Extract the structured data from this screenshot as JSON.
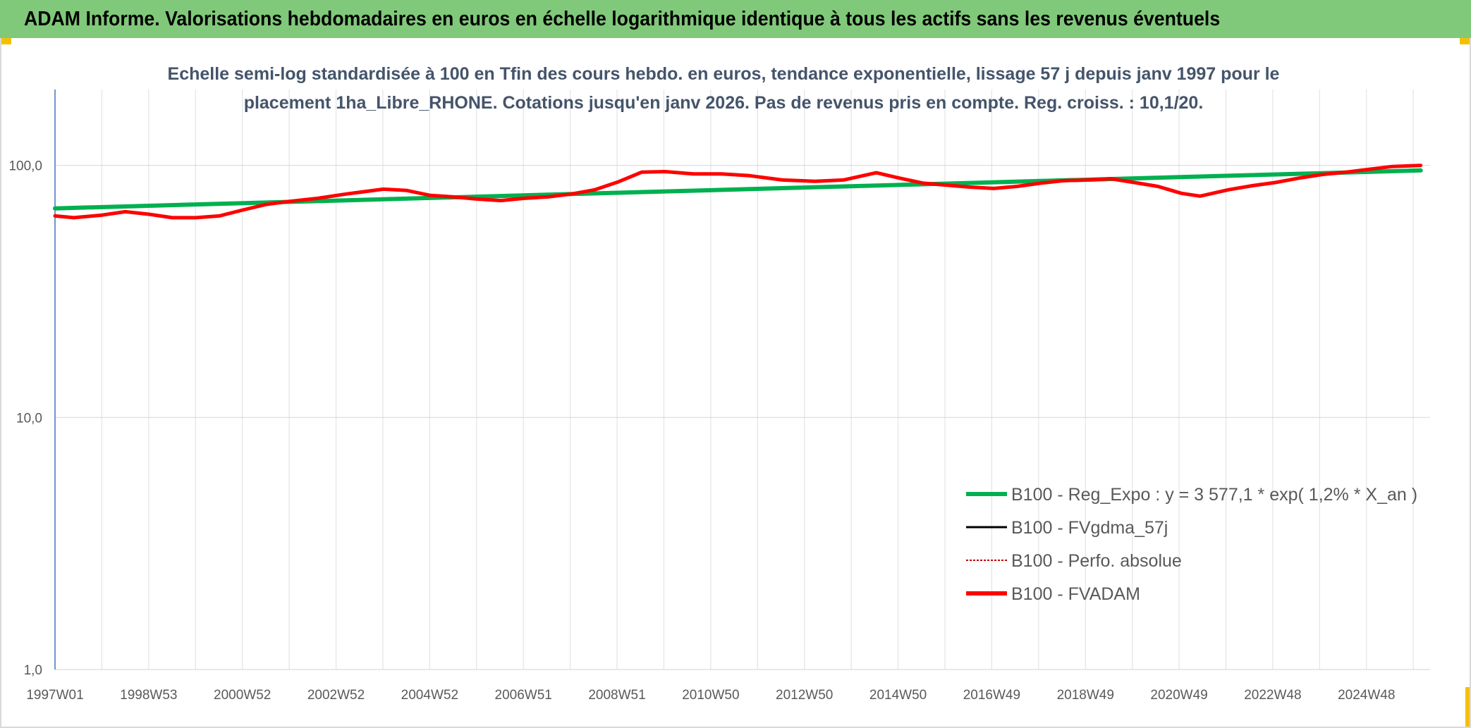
{
  "header": {
    "title": "ADAM Informe. Valorisations hebdomadaires en euros en échelle logarithmique identique à tous les actifs sans les revenus éventuels"
  },
  "chart_data": {
    "type": "line",
    "title": "",
    "subtitle_lines": [
      "Echelle semi-log standardisée à 100 en Tfin des cours hebdo. en euros, tendance exponentielle, lissage 57 j depuis janv 1997 pour le",
      "placement 1ha_Libre_RHONE. Cotations jusqu'en janv 2026. Pas de revenus pris en compte. Reg. croiss. : 10,1/20."
    ],
    "xlabel": "",
    "ylabel": "",
    "y_scale": "log",
    "ylim": [
      1,
      200
    ],
    "y_ticks": [
      1,
      10,
      100
    ],
    "y_tick_labels": [
      "1,0",
      "10,0",
      "100,0"
    ],
    "grid": true,
    "legend_position": "bottom-right",
    "x_tick_labels": [
      "1997W01",
      "1998W53",
      "2000W52",
      "2002W52",
      "2004W52",
      "2006W51",
      "2008W51",
      "2010W50",
      "2012W50",
      "2014W50",
      "2016W49",
      "2018W49",
      "2020W49",
      "2022W48",
      "2024W48"
    ],
    "x_range": [
      1997.0,
      2026.3
    ],
    "series": [
      {
        "name": "B100 - Reg_Expo : y = 3 577,1 * exp( 1,2% *  X_an )",
        "color": "#00b050",
        "style": "solid",
        "x": [
          1997.0,
          2026.1
        ],
        "y": [
          67.5,
          95.5
        ]
      },
      {
        "name": "B100 - FVgdma_57j",
        "color": "#000000",
        "style": "solid",
        "x": [],
        "y": []
      },
      {
        "name": "B100 - Perfo. absolue",
        "color": "#c00000",
        "style": "dotted",
        "x": [],
        "y": []
      },
      {
        "name": "B100 - FVADAM",
        "color": "#ff0000",
        "style": "solid",
        "x": [
          1997.0,
          1997.4,
          1998.0,
          1998.5,
          1999.0,
          1999.5,
          2000.0,
          2000.5,
          2001.0,
          2001.5,
          2002.0,
          2002.6,
          2003.2,
          2004.0,
          2004.5,
          2005.0,
          2005.5,
          2006.0,
          2006.5,
          2007.0,
          2007.5,
          2008.0,
          2008.5,
          2009.0,
          2009.5,
          2010.0,
          2010.6,
          2011.2,
          2011.8,
          2012.5,
          2013.2,
          2013.8,
          2014.5,
          2015.0,
          2015.5,
          2016.0,
          2016.5,
          2017.0,
          2017.5,
          2018.0,
          2018.5,
          2019.0,
          2019.5,
          2020.0,
          2020.5,
          2021.0,
          2021.4,
          2022.0,
          2022.5,
          2023.0,
          2023.5,
          2024.0,
          2024.5,
          2025.0,
          2025.5,
          2026.1
        ],
        "y": [
          63,
          62,
          63.5,
          65.5,
          64,
          62,
          62,
          63,
          66.5,
          70,
          72,
          74,
          77,
          80.5,
          79.5,
          76,
          75,
          73.5,
          72.5,
          74,
          75,
          77,
          80,
          86,
          94,
          94.5,
          92.5,
          92.5,
          91,
          87.5,
          86.5,
          87.5,
          93.5,
          89,
          85,
          83.5,
          82,
          81,
          82.5,
          85,
          87,
          87.5,
          88.5,
          85.5,
          82.5,
          77.5,
          75.5,
          80,
          83,
          85.5,
          89,
          92,
          94,
          96.5,
          99,
          100
        ]
      }
    ]
  }
}
